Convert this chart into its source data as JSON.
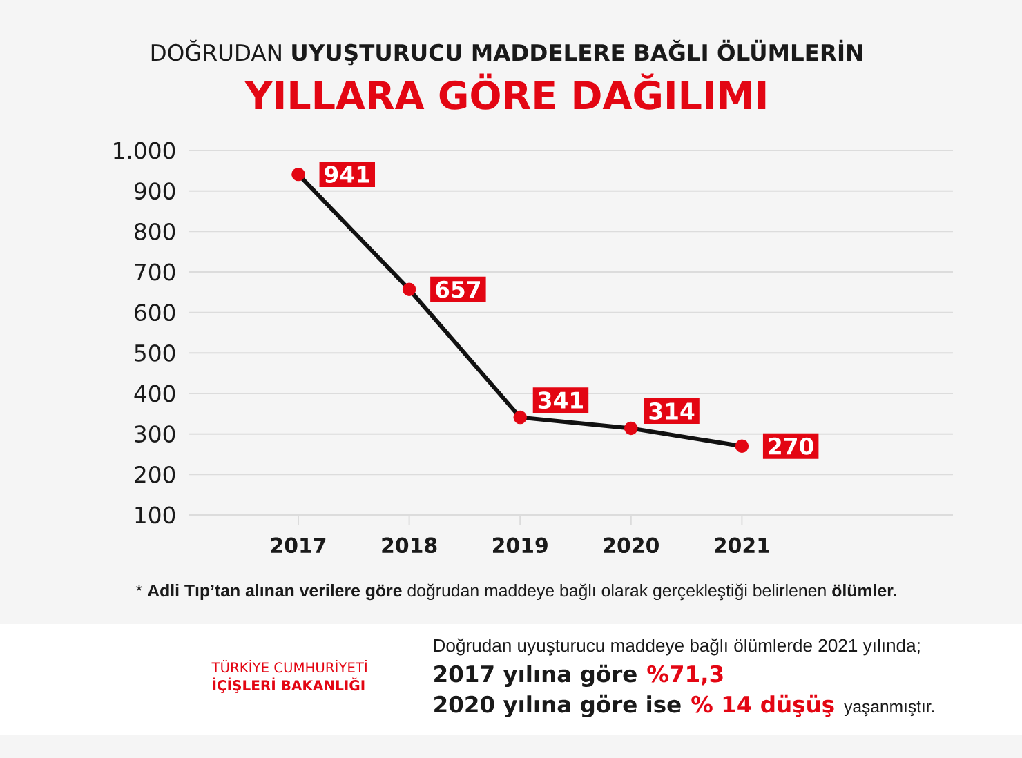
{
  "chart_data": {
    "type": "line",
    "title": "DOĞRUDAN **UYUŞTURUCU MADDELERE BAĞLI ÖLÜMLERİN**",
    "subtitle": "YILLARA GÖRE DAĞILIMI",
    "categories": [
      "2017",
      "2018",
      "2019",
      "2020",
      "2021"
    ],
    "values": [
      941,
      657,
      341,
      314,
      270
    ],
    "color": "#111111",
    "colors": [
      "#e30613",
      "#e30613",
      "#e30613",
      "#e30613",
      "#e30613"
    ],
    "ylim": [
      100,
      1000
    ],
    "yticks": [
      100,
      200,
      300,
      400,
      500,
      600,
      700,
      800,
      900,
      {
        "value": 1000,
        "label": "1.000"
      }
    ],
    "grid": "y",
    "marker": "circle",
    "line_style": "solid",
    "data_labels": true,
    "annotations": [
      "* **Adli Tıp’tan alınan verilere göre** doğrudan maddeye bağlı olarak gerçekleştiği belirlenen **ölümler.**",
      "TÜRKİYE CUMHURİYETİ",
      "İÇİŞLERİ BAKANLIĞI",
      "Doğrudan uyuşturucu maddeye bağlı ölümlerde 2021 yılında;",
      "2017 yılına göre",
      "%71,3",
      "2020 yılına göre ise",
      "% 14 düşüş",
      "yaşanmıştır."
    ]
  }
}
